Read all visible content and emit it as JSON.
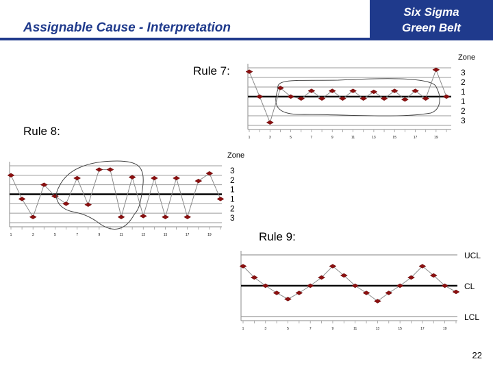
{
  "header": {
    "title": "Assignable Cause - Interpretation",
    "brand_line1": "Six Sigma",
    "brand_line2": "Green Belt"
  },
  "labels": {
    "rule7": "Rule 7:",
    "rule8": "Rule 8:",
    "rule9": "Rule 9:"
  },
  "page_number": "22",
  "chart_data": [
    {
      "id": "rule7",
      "type": "line",
      "ylim": [
        -3,
        3
      ],
      "zone_title": "Zone",
      "zone_labels": [
        "3",
        "2",
        "1",
        "1",
        "2",
        "3"
      ],
      "x": [
        1,
        2,
        3,
        4,
        5,
        6,
        7,
        8,
        9,
        10,
        11,
        12,
        13,
        14,
        15,
        16,
        17,
        18,
        19,
        20
      ],
      "values": [
        2.6,
        0.0,
        -2.7,
        0.9,
        0.0,
        -0.2,
        0.6,
        -0.2,
        0.6,
        -0.2,
        0.6,
        -0.2,
        0.5,
        -0.2,
        0.6,
        -0.3,
        0.6,
        -0.2,
        2.8,
        0.0
      ],
      "x_tick_labels": [
        "1",
        "3",
        "5",
        "7",
        "9",
        "11",
        "13",
        "15",
        "17",
        "19"
      ],
      "grid": true
    },
    {
      "id": "rule8",
      "type": "line",
      "ylim": [
        -3,
        3
      ],
      "zone_title": "Zone",
      "zone_labels": [
        "3",
        "2",
        "1",
        "1",
        "2",
        "3"
      ],
      "x": [
        1,
        2,
        3,
        4,
        5,
        6,
        7,
        8,
        9,
        10,
        11,
        12,
        13,
        14,
        15,
        16,
        17,
        18,
        19,
        20
      ],
      "values": [
        2.0,
        -0.5,
        -2.4,
        1.0,
        -0.2,
        -1.0,
        1.7,
        -1.1,
        2.6,
        2.6,
        -2.4,
        1.8,
        -2.3,
        1.7,
        -2.4,
        1.7,
        -2.4,
        1.4,
        2.2,
        -0.5
      ],
      "x_tick_labels": [
        "1",
        "3",
        "5",
        "7",
        "9",
        "11",
        "13",
        "15",
        "17",
        "19"
      ],
      "grid": true
    },
    {
      "id": "rule9",
      "type": "line",
      "ylim": [
        -3,
        3
      ],
      "control_labels": [
        "UCL",
        "CL",
        "LCL"
      ],
      "x": [
        1,
        2,
        3,
        4,
        5,
        6,
        7,
        8,
        9,
        10,
        11,
        12,
        13,
        14,
        15,
        16,
        17,
        18,
        19,
        20
      ],
      "values": [
        1.9,
        0.8,
        0.0,
        -0.7,
        -1.3,
        -0.7,
        0.0,
        0.8,
        1.9,
        1.0,
        0.0,
        -0.7,
        -1.5,
        -0.7,
        0.0,
        0.8,
        1.9,
        1.0,
        0.0,
        -0.6
      ],
      "x_tick_labels": [
        "1",
        "3",
        "5",
        "7",
        "9",
        "11",
        "13",
        "15",
        "17",
        "19"
      ],
      "grid": true
    }
  ]
}
